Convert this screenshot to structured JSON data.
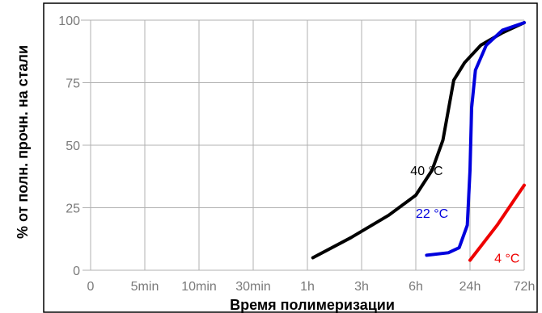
{
  "chart_data": {
    "type": "line",
    "xlabel": "Время полимеризации",
    "ylabel": "% от полн. прочн. на стали",
    "x_ticks": [
      "0",
      "5min",
      "10min",
      "30min",
      "1h",
      "3h",
      "6h",
      "24h",
      "72h"
    ],
    "y_ticks": [
      0,
      25,
      50,
      75,
      100
    ],
    "ylim": [
      0,
      100
    ],
    "grid": true,
    "colors": {
      "background": "#ffffff",
      "grid": "#b0b0b0",
      "frame": "#000000",
      "ticks": "#7a7a7a"
    },
    "series": [
      {
        "name": "40 °C",
        "color": "#000000",
        "x": [
          "1h",
          "3h",
          "6h",
          "24h",
          "72h"
        ],
        "points": [
          {
            "x": 4.1,
            "y": 5
          },
          {
            "x": 4.8,
            "y": 13
          },
          {
            "x": 5.5,
            "y": 22
          },
          {
            "x": 6.0,
            "y": 30
          },
          {
            "x": 6.3,
            "y": 40
          },
          {
            "x": 6.5,
            "y": 52
          },
          {
            "x": 6.6,
            "y": 64
          },
          {
            "x": 6.7,
            "y": 76
          },
          {
            "x": 6.9,
            "y": 83
          },
          {
            "x": 7.2,
            "y": 90
          },
          {
            "x": 7.6,
            "y": 95
          },
          {
            "x": 8.0,
            "y": 99
          }
        ]
      },
      {
        "name": "22 °C",
        "color": "#0000dd",
        "x": [
          "6h",
          "24h",
          "72h"
        ],
        "points": [
          {
            "x": 6.2,
            "y": 6
          },
          {
            "x": 6.6,
            "y": 7
          },
          {
            "x": 6.8,
            "y": 9
          },
          {
            "x": 6.95,
            "y": 18
          },
          {
            "x": 7.0,
            "y": 40
          },
          {
            "x": 7.03,
            "y": 65
          },
          {
            "x": 7.1,
            "y": 80
          },
          {
            "x": 7.3,
            "y": 90
          },
          {
            "x": 7.6,
            "y": 96
          },
          {
            "x": 8.0,
            "y": 99
          }
        ]
      },
      {
        "name": "4 °C",
        "color": "#ee0000",
        "x": [
          "24h",
          "72h"
        ],
        "points": [
          {
            "x": 7.0,
            "y": 4
          },
          {
            "x": 7.5,
            "y": 18
          },
          {
            "x": 8.0,
            "y": 34
          }
        ]
      }
    ],
    "annotations": [
      {
        "text": "40 °C",
        "series": 0,
        "x": 5.9,
        "y": 38
      },
      {
        "text": "22 °C",
        "series": 1,
        "x": 6.0,
        "y": 21
      },
      {
        "text": "4 °C",
        "series": 2,
        "x": 7.45,
        "y": 3
      }
    ]
  }
}
